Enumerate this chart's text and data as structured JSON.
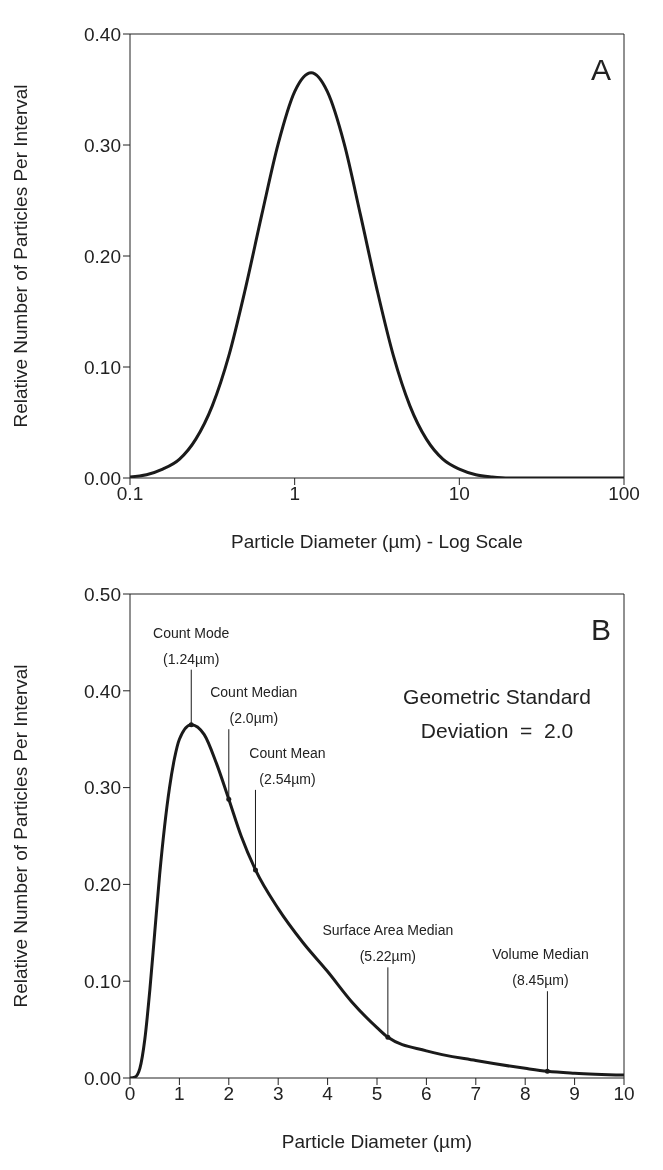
{
  "chart_data": [
    {
      "type": "line",
      "xlabel": "Particle Diameter  (µm)  -  Log Scale",
      "ylabel": "Relative  Number of Particles Per Interval",
      "log": "x",
      "color": "#1a1a1a",
      "x": [
        0.1,
        0.126,
        0.158,
        0.2,
        0.251,
        0.316,
        0.398,
        0.501,
        0.631,
        0.794,
        1,
        1.26,
        1.58,
        2,
        2.51,
        3.16,
        3.98,
        5.01,
        6.31,
        7.94,
        10,
        12.6,
        15.8,
        20,
        31.6,
        50,
        100
      ],
      "values": [
        0.001,
        0.003,
        0.008,
        0.017,
        0.035,
        0.065,
        0.11,
        0.17,
        0.237,
        0.301,
        0.348,
        0.365,
        0.348,
        0.301,
        0.237,
        0.17,
        0.11,
        0.065,
        0.035,
        0.017,
        0.008,
        0.003,
        0.001,
        0,
        0,
        0,
        0
      ],
      "xlim": [
        0.1,
        100
      ],
      "xticks": [
        0.1,
        1,
        10,
        100
      ],
      "ylim": [
        0,
        0.4
      ],
      "yticks": [
        {
          "value": 0,
          "label": "0.00"
        },
        {
          "value": 0.1,
          "label": "0.10"
        },
        {
          "value": 0.2,
          "label": "0.20"
        },
        {
          "value": 0.3,
          "label": "0.30"
        },
        {
          "value": 0.4,
          "label": "0.40"
        }
      ],
      "annotations": [
        "A"
      ]
    },
    {
      "type": "line",
      "xlabel": "Particle Diameter  (µm)",
      "ylabel": "Relative  Number of Particles Per Interval",
      "color": "#1a1a1a",
      "x": [
        0,
        0.1,
        0.2,
        0.3,
        0.4,
        0.5,
        0.6,
        0.7,
        0.8,
        0.9,
        1,
        1.24,
        1.5,
        1.75,
        2,
        2.25,
        2.54,
        3,
        3.5,
        4,
        4.5,
        5,
        5.22,
        6,
        7,
        8,
        8.45,
        9,
        10
      ],
      "values": [
        0,
        0.001,
        0.01,
        0.04,
        0.09,
        0.15,
        0.21,
        0.26,
        0.3,
        0.33,
        0.35,
        0.365,
        0.355,
        0.325,
        0.288,
        0.25,
        0.215,
        0.175,
        0.14,
        0.11,
        0.078,
        0.052,
        0.042,
        0.028,
        0.018,
        0.01,
        0.007,
        0.005,
        0.003
      ],
      "xlim": [
        0,
        10
      ],
      "xticks": [
        0,
        1,
        2,
        3,
        4,
        5,
        6,
        7,
        8,
        9,
        10
      ],
      "ylim": [
        0,
        0.5
      ],
      "yticks": [
        {
          "value": 0,
          "label": "0.00"
        },
        {
          "value": 0.1,
          "label": "0.10"
        },
        {
          "value": 0.2,
          "label": "0.20"
        },
        {
          "value": 0.3,
          "label": "0.30"
        },
        {
          "value": 0.4,
          "label": "0.40"
        },
        {
          "value": 0.5,
          "label": "0.50"
        }
      ],
      "annotations": [
        "B",
        "Geometric Standard\nDeviation  =  2.0",
        {
          "text": "Count Mode\n(1.24µm)",
          "x": 1.24,
          "y": 0.365
        },
        {
          "text": "Count Median\n(2.0µm)",
          "x": 2.0,
          "y": 0.288
        },
        {
          "text": "Count Mean\n(2.54µm)",
          "x": 2.54,
          "y": 0.215
        },
        {
          "text": "Surface Area Median\n(5.22µm)",
          "x": 5.22,
          "y": 0.042
        },
        {
          "text": "Volume Median\n(8.45µm)",
          "x": 8.45,
          "y": 0.007
        }
      ]
    }
  ]
}
